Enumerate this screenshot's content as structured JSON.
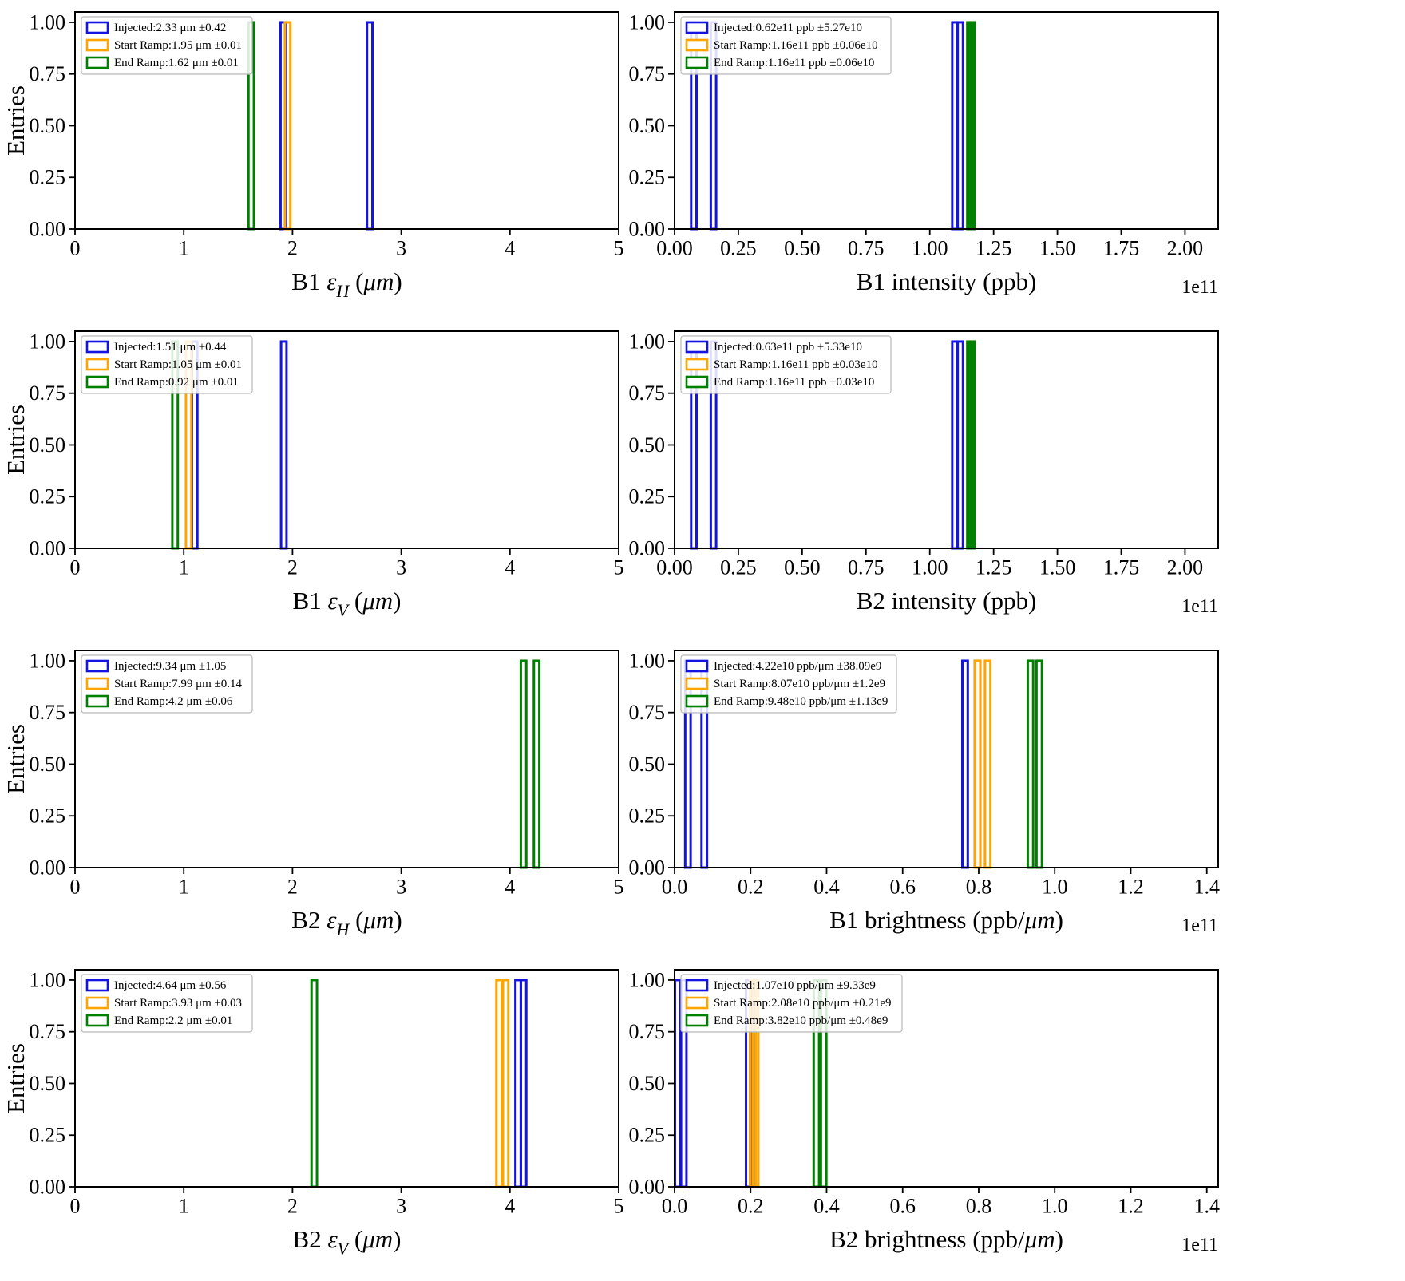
{
  "colors": {
    "injected": "#1414e0",
    "start_ramp": "#ffa500",
    "end_ramp": "#008000",
    "axis": "#000000",
    "legend_border": "#b8b8b8"
  },
  "chart_defaults": {
    "ylim": [
      0,
      1.05
    ],
    "yticks": {
      "values": [
        0,
        0.25,
        0.5,
        0.75,
        1.0
      ],
      "labels": [
        "0.00",
        "0.25",
        "0.50",
        "0.75",
        "1.00"
      ]
    }
  },
  "chart_data": [
    {
      "type": "histogram",
      "name": "b1-emittance-h",
      "ylabel": "Entries",
      "xlabel_parts": [
        {
          "t": "B1 "
        },
        {
          "t": "ε",
          "i": true
        },
        {
          "t": "H",
          "i": true,
          "sub": true
        },
        {
          "t": " ("
        },
        {
          "t": "μm",
          "i": true
        },
        {
          "t": ")"
        }
      ],
      "xlim": [
        0,
        5
      ],
      "xticks": {
        "values": [
          0,
          1,
          2,
          3,
          4,
          5
        ],
        "labels": [
          "0",
          "1",
          "2",
          "3",
          "4",
          "5"
        ]
      },
      "offset": "",
      "series": [
        {
          "key": "injected",
          "label": "Injected:2.33 μm ±0.42",
          "bars": [
            {
              "x": 1.89,
              "w": 0.05,
              "h": 1
            },
            {
              "x": 2.685,
              "w": 0.05,
              "h": 1
            }
          ]
        },
        {
          "key": "start_ramp",
          "label": "Start Ramp:1.95 μm ±0.01",
          "bars": [
            {
              "x": 1.93,
              "w": 0.05,
              "h": 1
            }
          ]
        },
        {
          "key": "end_ramp",
          "label": "End Ramp:1.62 μm ±0.01",
          "bars": [
            {
              "x": 1.595,
              "w": 0.05,
              "h": 1
            }
          ]
        }
      ]
    },
    {
      "type": "histogram",
      "name": "b1-intensity",
      "ylabel": "",
      "xlabel_parts": [
        {
          "t": "B1 intensity (ppb)"
        }
      ],
      "xlim": [
        0,
        2.13
      ],
      "xticks": {
        "values": [
          0,
          0.25,
          0.5,
          0.75,
          1.0,
          1.25,
          1.5,
          1.75,
          2.0
        ],
        "labels": [
          "0.00",
          "0.25",
          "0.50",
          "0.75",
          "1.00",
          "1.25",
          "1.50",
          "1.75",
          "2.00"
        ]
      },
      "offset": "1e11",
      "series": [
        {
          "key": "injected",
          "label": "Injected:0.62e11 ppb ±5.27e10",
          "bars": [
            {
              "x": 0.065,
              "w": 0.021,
              "h": 1
            },
            {
              "x": 0.142,
              "w": 0.021,
              "h": 1
            },
            {
              "x": 1.088,
              "w": 0.021,
              "h": 1
            },
            {
              "x": 1.109,
              "w": 0.021,
              "h": 1
            }
          ]
        },
        {
          "key": "start_ramp",
          "label": "Start Ramp:1.16e11 ppb ±0.06e10",
          "bars": [
            {
              "x": 1.147,
              "w": 0.026,
              "h": 1
            }
          ]
        },
        {
          "key": "end_ramp",
          "label": "End Ramp:1.16e11 ppb ±0.06e10",
          "bars": [
            {
              "x": 1.147,
              "w": 0.028,
              "h": 1,
              "fill": true
            }
          ]
        }
      ]
    },
    {
      "type": "histogram",
      "name": "b1-emittance-v",
      "ylabel": "Entries",
      "xlabel_parts": [
        {
          "t": "B1 "
        },
        {
          "t": "ε",
          "i": true
        },
        {
          "t": "V",
          "i": true,
          "sub": true
        },
        {
          "t": " ("
        },
        {
          "t": "μm",
          "i": true
        },
        {
          "t": ")"
        }
      ],
      "xlim": [
        0,
        5
      ],
      "xticks": {
        "values": [
          0,
          1,
          2,
          3,
          4,
          5
        ],
        "labels": [
          "0",
          "1",
          "2",
          "3",
          "4",
          "5"
        ]
      },
      "offset": "",
      "series": [
        {
          "key": "injected",
          "label": "Injected:1.51 μm ±0.44",
          "bars": [
            {
              "x": 1.075,
              "w": 0.05,
              "h": 1
            },
            {
              "x": 1.895,
              "w": 0.05,
              "h": 1
            }
          ]
        },
        {
          "key": "start_ramp",
          "label": "Start Ramp:1.05 μm ±0.01",
          "bars": [
            {
              "x": 1.02,
              "w": 0.05,
              "h": 1
            }
          ]
        },
        {
          "key": "end_ramp",
          "label": "End Ramp:0.92 μm ±0.01",
          "bars": [
            {
              "x": 0.895,
              "w": 0.05,
              "h": 1
            }
          ]
        }
      ]
    },
    {
      "type": "histogram",
      "name": "b2-intensity",
      "ylabel": "",
      "xlabel_parts": [
        {
          "t": "B2 intensity (ppb)"
        }
      ],
      "xlim": [
        0,
        2.13
      ],
      "xticks": {
        "values": [
          0,
          0.25,
          0.5,
          0.75,
          1.0,
          1.25,
          1.5,
          1.75,
          2.0
        ],
        "labels": [
          "0.00",
          "0.25",
          "0.50",
          "0.75",
          "1.00",
          "1.25",
          "1.50",
          "1.75",
          "2.00"
        ]
      },
      "offset": "1e11",
      "series": [
        {
          "key": "injected",
          "label": "Injected:0.63e11 ppb ±5.33e10",
          "bars": [
            {
              "x": 0.065,
              "w": 0.021,
              "h": 1
            },
            {
              "x": 0.142,
              "w": 0.021,
              "h": 1
            },
            {
              "x": 1.088,
              "w": 0.021,
              "h": 1
            },
            {
              "x": 1.109,
              "w": 0.021,
              "h": 1
            }
          ]
        },
        {
          "key": "start_ramp",
          "label": "Start Ramp:1.16e11 ppb ±0.03e10",
          "bars": [
            {
              "x": 1.147,
              "w": 0.026,
              "h": 1
            }
          ]
        },
        {
          "key": "end_ramp",
          "label": "End Ramp:1.16e11 ppb ±0.03e10",
          "bars": [
            {
              "x": 1.147,
              "w": 0.028,
              "h": 1,
              "fill": true
            }
          ]
        }
      ]
    },
    {
      "type": "histogram",
      "name": "b2-emittance-h",
      "ylabel": "Entries",
      "xlabel_parts": [
        {
          "t": "B2 "
        },
        {
          "t": "ε",
          "i": true
        },
        {
          "t": "H",
          "i": true,
          "sub": true
        },
        {
          "t": " ("
        },
        {
          "t": "μm",
          "i": true
        },
        {
          "t": ")"
        }
      ],
      "xlim": [
        0,
        5
      ],
      "xticks": {
        "values": [
          0,
          1,
          2,
          3,
          4,
          5
        ],
        "labels": [
          "0",
          "1",
          "2",
          "3",
          "4",
          "5"
        ]
      },
      "offset": "",
      "series": [
        {
          "key": "injected",
          "label": "Injected:9.34 μm ±1.05",
          "bars": []
        },
        {
          "key": "start_ramp",
          "label": "Start Ramp:7.99 μm ±0.14",
          "bars": []
        },
        {
          "key": "end_ramp",
          "label": "End Ramp:4.2 μm ±0.06",
          "bars": [
            {
              "x": 4.1,
              "w": 0.05,
              "h": 1
            },
            {
              "x": 4.22,
              "w": 0.05,
              "h": 1
            }
          ]
        }
      ]
    },
    {
      "type": "histogram",
      "name": "b1-brightness",
      "ylabel": "",
      "xlabel_parts": [
        {
          "t": "B1 brightness (ppb/"
        },
        {
          "t": "μm",
          "i": true
        },
        {
          "t": ")"
        }
      ],
      "xlim": [
        0,
        1.43
      ],
      "xticks": {
        "values": [
          0,
          0.2,
          0.4,
          0.6,
          0.8,
          1.0,
          1.2,
          1.4
        ],
        "labels": [
          "0.0",
          "0.2",
          "0.4",
          "0.6",
          "0.8",
          "1.0",
          "1.2",
          "1.4"
        ]
      },
      "offset": "1e11",
      "series": [
        {
          "key": "injected",
          "label": "Injected:4.22e10 ppb/μm ±38.09e9",
          "bars": [
            {
              "x": 0.028,
              "w": 0.0143,
              "h": 1
            },
            {
              "x": 0.071,
              "w": 0.0143,
              "h": 1
            },
            {
              "x": 0.757,
              "w": 0.0143,
              "h": 1
            },
            {
              "x": 0.79,
              "w": 0.0143,
              "h": 1
            }
          ]
        },
        {
          "key": "start_ramp",
          "label": "Start Ramp:8.07e10 ppb/μm ±1.2e9",
          "bars": [
            {
              "x": 0.79,
              "w": 0.0143,
              "h": 1
            },
            {
              "x": 0.8165,
              "w": 0.0143,
              "h": 1
            }
          ]
        },
        {
          "key": "end_ramp",
          "label": "End Ramp:9.48e10 ppb/μm ±1.13e9",
          "bars": [
            {
              "x": 0.929,
              "w": 0.0143,
              "h": 1
            },
            {
              "x": 0.952,
              "w": 0.0143,
              "h": 1
            }
          ]
        }
      ]
    },
    {
      "type": "histogram",
      "name": "b2-emittance-v",
      "ylabel": "Entries",
      "xlabel_parts": [
        {
          "t": "B2 "
        },
        {
          "t": "ε",
          "i": true
        },
        {
          "t": "V",
          "i": true,
          "sub": true
        },
        {
          "t": " ("
        },
        {
          "t": "μm",
          "i": true
        },
        {
          "t": ")"
        }
      ],
      "xlim": [
        0,
        5
      ],
      "xticks": {
        "values": [
          0,
          1,
          2,
          3,
          4,
          5
        ],
        "labels": [
          "0",
          "1",
          "2",
          "3",
          "4",
          "5"
        ]
      },
      "offset": "",
      "series": [
        {
          "key": "injected",
          "label": "Injected:4.64 μm ±0.56",
          "bars": [
            {
              "x": 4.05,
              "w": 0.05,
              "h": 1
            },
            {
              "x": 4.1,
              "w": 0.05,
              "h": 1
            }
          ]
        },
        {
          "key": "start_ramp",
          "label": "Start Ramp:3.93 μm ±0.03",
          "bars": [
            {
              "x": 3.875,
              "w": 0.05,
              "h": 1
            },
            {
              "x": 3.935,
              "w": 0.05,
              "h": 1
            }
          ]
        },
        {
          "key": "end_ramp",
          "label": "End Ramp:2.2 μm ±0.01",
          "bars": [
            {
              "x": 2.175,
              "w": 0.05,
              "h": 1
            }
          ]
        }
      ]
    },
    {
      "type": "histogram",
      "name": "b2-brightness",
      "ylabel": "",
      "xlabel_parts": [
        {
          "t": "B2 brightness (ppb/"
        },
        {
          "t": "μm",
          "i": true
        },
        {
          "t": ")"
        }
      ],
      "xlim": [
        0,
        1.43
      ],
      "xticks": {
        "values": [
          0,
          0.2,
          0.4,
          0.6,
          0.8,
          1.0,
          1.2,
          1.4
        ],
        "labels": [
          "0.0",
          "0.2",
          "0.4",
          "0.6",
          "0.8",
          "1.0",
          "1.2",
          "1.4"
        ]
      },
      "offset": "1e11",
      "series": [
        {
          "key": "injected",
          "label": "Injected:1.07e10 ppb/μm ±9.33e9",
          "bars": [
            {
              "x": 0.001,
              "w": 0.0143,
              "h": 1
            },
            {
              "x": 0.017,
              "w": 0.0143,
              "h": 1
            },
            {
              "x": 0.188,
              "w": 0.0143,
              "h": 1
            },
            {
              "x": 0.199,
              "w": 0.0143,
              "h": 1
            }
          ]
        },
        {
          "key": "start_ramp",
          "label": "Start Ramp:2.08e10 ppb/μm ±0.21e9",
          "bars": [
            {
              "x": 0.199,
              "w": 0.0143,
              "h": 1
            },
            {
              "x": 0.206,
              "w": 0.0143,
              "h": 1
            }
          ]
        },
        {
          "key": "end_ramp",
          "label": "End Ramp:3.82e10 ppb/μm ±0.48e9",
          "bars": [
            {
              "x": 0.366,
              "w": 0.0143,
              "h": 1
            },
            {
              "x": 0.385,
              "w": 0.0143,
              "h": 1
            }
          ]
        }
      ]
    }
  ]
}
